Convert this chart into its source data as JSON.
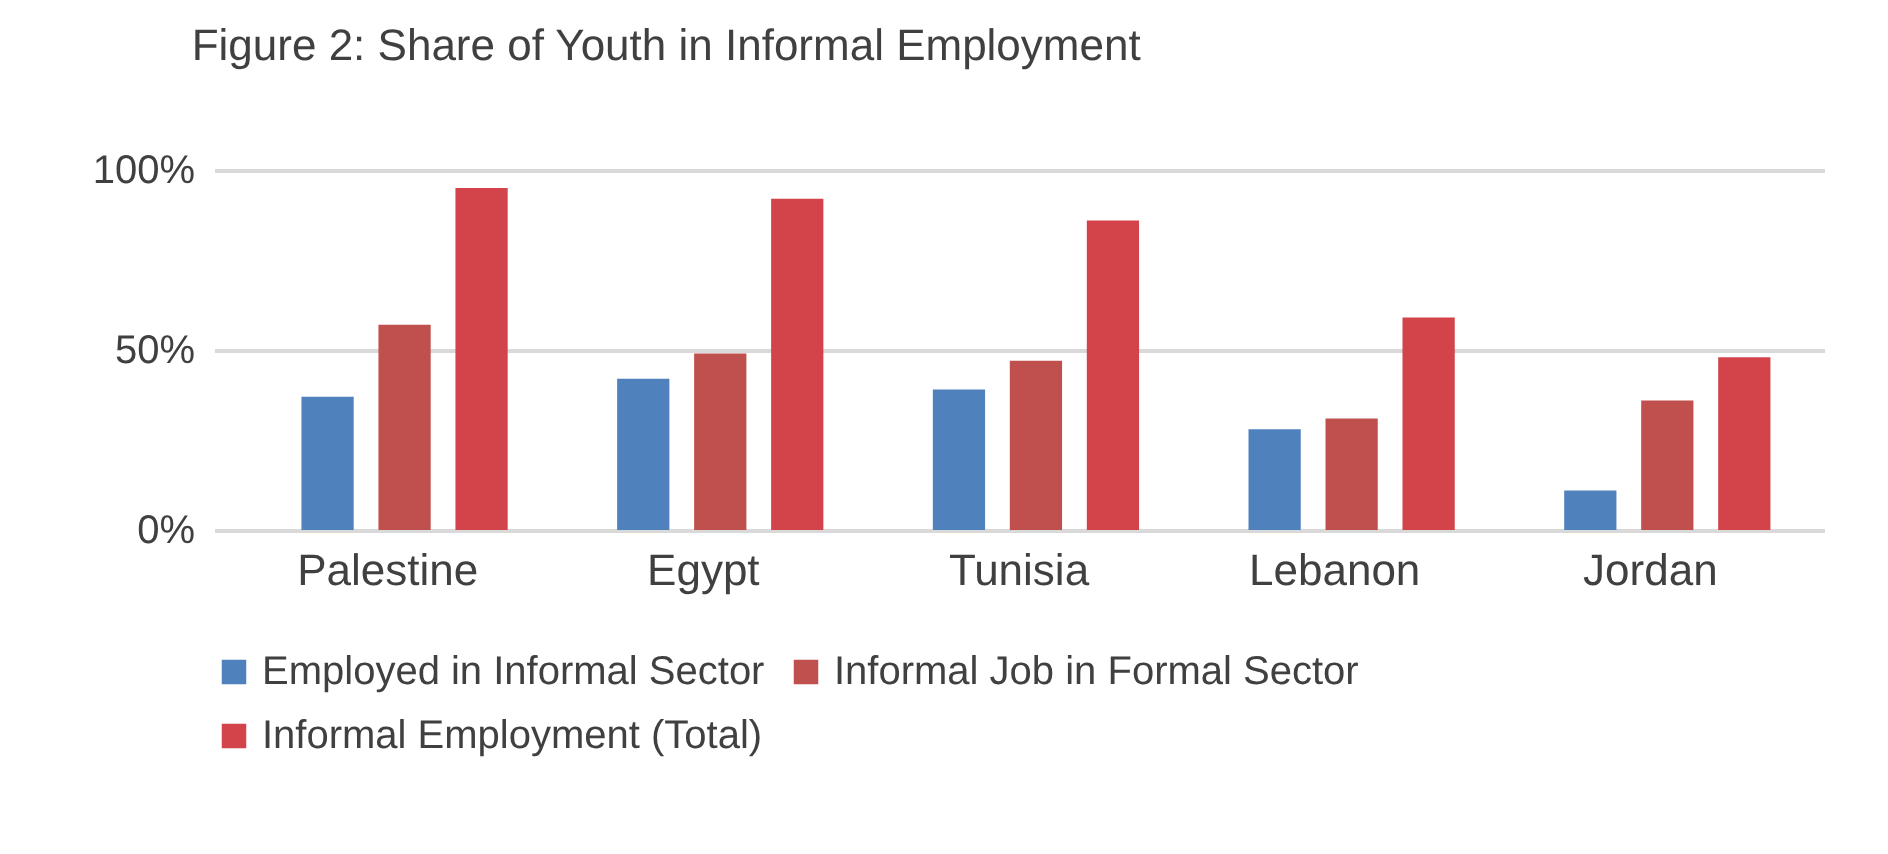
{
  "chart_data": {
    "type": "bar",
    "title": "Figure 2: Share of Youth in Informal Employment",
    "categories": [
      "Palestine",
      "Egypt",
      "Tunisia",
      "Lebanon",
      "Jordan"
    ],
    "series": [
      {
        "name": "Employed in Informal Sector",
        "color": "#4f81bd",
        "values": [
          37,
          42,
          39,
          28,
          11
        ]
      },
      {
        "name": "Informal Job in Formal Sector",
        "color": "#c0504d",
        "values": [
          57,
          49,
          47,
          31,
          36
        ]
      },
      {
        "name": "Informal Employment (Total)",
        "color": "#d2434a",
        "values": [
          95,
          92,
          86,
          59,
          48
        ]
      }
    ],
    "ylim": [
      0,
      100
    ],
    "yticks": [
      {
        "value": 0,
        "label": "0%"
      },
      {
        "value": 50,
        "label": "50%"
      },
      {
        "value": 100,
        "label": "100%"
      }
    ],
    "grid": "y",
    "legend": "bottom"
  }
}
